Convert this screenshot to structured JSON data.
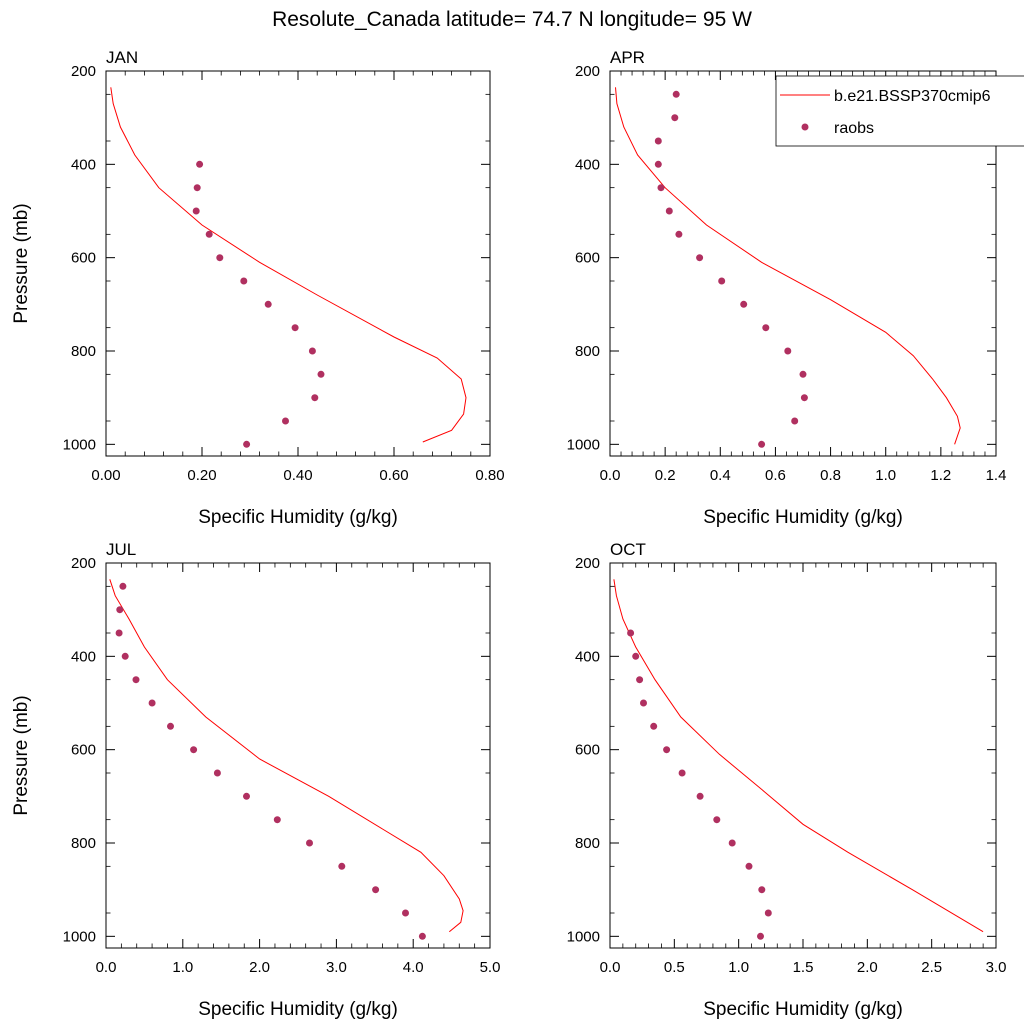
{
  "title": "Resolute_Canada  latitude= 74.7 N longitude= 95 W",
  "colors": {
    "model": "#ff0000",
    "obs": "#b03060"
  },
  "legend": {
    "model_label": "b.e21.BSSP370cmip6",
    "obs_label": "raobs"
  },
  "chart_data": [
    {
      "type": "line",
      "panel": "JAN",
      "xlabel": "Specific Humidity (g/kg)",
      "ylabel": "Pressure (mb)",
      "xlim": [
        0,
        0.8
      ],
      "ylim": [
        200,
        1025
      ],
      "y_reversed": true,
      "xticks": [
        0,
        0.2,
        0.4,
        0.6,
        0.8
      ],
      "xtick_labels": [
        "0.00",
        "0.20",
        "0.40",
        "0.60",
        "0.80"
      ],
      "yticks": [
        200,
        400,
        600,
        800,
        1000
      ],
      "ytick_labels": [
        "200",
        "400",
        "600",
        "800",
        "1000"
      ],
      "series": [
        {
          "x": [
            0.01,
            0.015,
            0.03,
            0.06,
            0.11,
            0.2,
            0.32,
            0.44,
            0.6,
            0.69,
            0.74,
            0.75,
            0.745,
            0.72,
            0.66
          ],
          "y": [
            235,
            270,
            320,
            380,
            450,
            530,
            610,
            680,
            770,
            815,
            860,
            900,
            935,
            970,
            995
          ]
        },
        {
          "x": [
            0.195,
            0.19,
            0.188,
            0.215,
            0.237,
            0.287,
            0.338,
            0.394,
            0.43,
            0.448,
            0.435,
            0.374,
            0.293
          ],
          "y": [
            400,
            450,
            500,
            550,
            600,
            650,
            700,
            750,
            800,
            850,
            900,
            950,
            1000
          ]
        }
      ]
    },
    {
      "type": "line",
      "panel": "APR",
      "xlabel": "Specific Humidity (g/kg)",
      "ylabel": "",
      "xlim": [
        0,
        1.4
      ],
      "ylim": [
        200,
        1025
      ],
      "y_reversed": true,
      "xticks": [
        0,
        0.2,
        0.4,
        0.6,
        0.8,
        1.0,
        1.2,
        1.4
      ],
      "xtick_labels": [
        "0.0",
        "0.2",
        "0.4",
        "0.6",
        "0.8",
        "1.0",
        "1.2",
        "1.4"
      ],
      "yticks": [
        200,
        400,
        600,
        800,
        1000
      ],
      "ytick_labels": [
        "200",
        "400",
        "600",
        "800",
        "1000"
      ],
      "series": [
        {
          "x": [
            0.02,
            0.025,
            0.05,
            0.1,
            0.2,
            0.35,
            0.55,
            0.8,
            1.0,
            1.1,
            1.17,
            1.22,
            1.26,
            1.27,
            1.25
          ],
          "y": [
            235,
            270,
            320,
            380,
            450,
            530,
            610,
            690,
            760,
            810,
            860,
            900,
            940,
            965,
            1000
          ]
        },
        {
          "x": [
            0.24,
            0.235,
            0.175,
            0.175,
            0.185,
            0.215,
            0.25,
            0.325,
            0.405,
            0.485,
            0.565,
            0.645,
            0.7,
            0.705,
            0.67,
            0.55
          ],
          "y": [
            250,
            300,
            350,
            400,
            450,
            500,
            550,
            600,
            650,
            700,
            750,
            800,
            850,
            900,
            950,
            1000
          ]
        }
      ]
    },
    {
      "type": "line",
      "panel": "JUL",
      "xlabel": "Specific Humidity (g/kg)",
      "ylabel": "Pressure (mb)",
      "xlim": [
        0,
        5.0
      ],
      "ylim": [
        200,
        1025
      ],
      "y_reversed": true,
      "xticks": [
        0,
        1,
        2,
        3,
        4,
        5
      ],
      "xtick_labels": [
        "0.0",
        "1.0",
        "2.0",
        "3.0",
        "4.0",
        "5.0"
      ],
      "yticks": [
        200,
        400,
        600,
        800,
        1000
      ],
      "ytick_labels": [
        "200",
        "400",
        "600",
        "800",
        "1000"
      ],
      "series": [
        {
          "x": [
            0.05,
            0.12,
            0.3,
            0.5,
            0.8,
            1.3,
            2.0,
            2.9,
            3.6,
            4.1,
            4.4,
            4.6,
            4.65,
            4.62,
            4.47
          ],
          "y": [
            235,
            270,
            320,
            380,
            450,
            530,
            620,
            700,
            770,
            820,
            870,
            920,
            945,
            970,
            990
          ]
        },
        {
          "x": [
            0.22,
            0.18,
            0.17,
            0.25,
            0.39,
            0.6,
            0.84,
            1.14,
            1.45,
            1.83,
            2.23,
            2.65,
            3.07,
            3.51,
            3.9,
            4.12
          ],
          "y": [
            250,
            300,
            350,
            400,
            450,
            500,
            550,
            600,
            650,
            700,
            750,
            800,
            850,
            900,
            950,
            1000
          ]
        }
      ]
    },
    {
      "type": "line",
      "panel": "OCT",
      "xlabel": "Specific Humidity (g/kg)",
      "ylabel": "",
      "xlim": [
        0,
        3.0
      ],
      "ylim": [
        200,
        1025
      ],
      "y_reversed": true,
      "xticks": [
        0,
        0.5,
        1.0,
        1.5,
        2.0,
        2.5,
        3.0
      ],
      "xtick_labels": [
        "0.0",
        "0.5",
        "1.0",
        "1.5",
        "2.0",
        "2.5",
        "3.0"
      ],
      "yticks": [
        200,
        400,
        600,
        800,
        1000
      ],
      "ytick_labels": [
        "200",
        "400",
        "600",
        "800",
        "1000"
      ],
      "series": [
        {
          "x": [
            0.03,
            0.05,
            0.1,
            0.2,
            0.35,
            0.55,
            0.85,
            1.2,
            1.5,
            1.85,
            2.35,
            2.9
          ],
          "y": [
            235,
            270,
            320,
            380,
            450,
            530,
            610,
            690,
            760,
            820,
            900,
            990
          ]
        },
        {
          "x": [
            0.16,
            0.2,
            0.23,
            0.26,
            0.34,
            0.44,
            0.56,
            0.7,
            0.83,
            0.95,
            1.08,
            1.18,
            1.23,
            1.17
          ],
          "y": [
            350,
            400,
            450,
            500,
            550,
            600,
            650,
            700,
            750,
            800,
            850,
            900,
            950,
            1000
          ]
        }
      ]
    }
  ]
}
